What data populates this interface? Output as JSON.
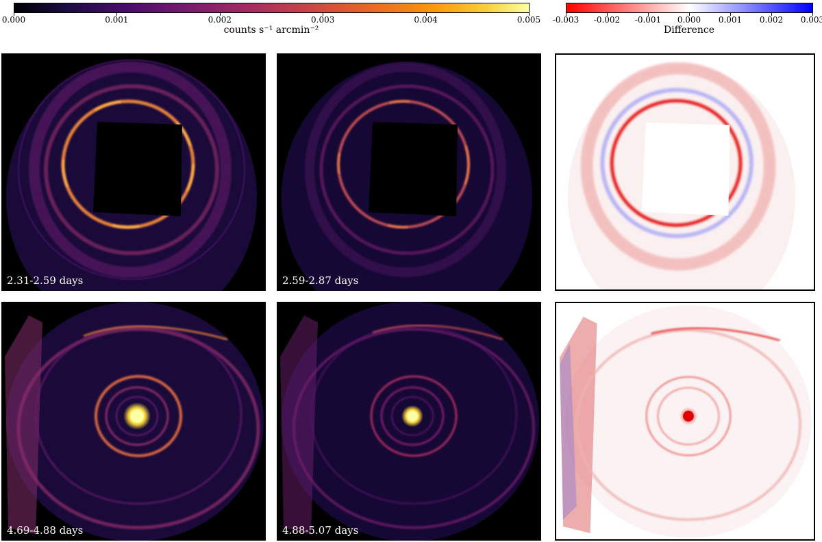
{
  "colorbar_counts": {
    "ticks": [
      "0.000",
      "0.001",
      "0.002",
      "0.003",
      "0.004",
      "0.005"
    ],
    "label": "counts s⁻¹ arcmin⁻²",
    "range": [
      0.0,
      0.005
    ],
    "colormap": "inferno"
  },
  "colorbar_diff": {
    "ticks": [
      "-0.003",
      "-0.002",
      "-0.001",
      "0.000",
      "0.001",
      "0.002",
      "0.003"
    ],
    "label": "Difference",
    "range": [
      -0.003,
      0.003
    ],
    "colormap": "bwr_reversed",
    "neg_color": "#ff0000",
    "pos_color": "#0000ff"
  },
  "panels": [
    {
      "id": "p1",
      "label": "2.31-2.59 days"
    },
    {
      "id": "p2",
      "label": "2.59-2.87 days"
    },
    {
      "id": "p3",
      "label": ""
    },
    {
      "id": "p4",
      "label": "4.69-4.88 days"
    },
    {
      "id": "p5",
      "label": "4.88-5.07 days"
    },
    {
      "id": "p6",
      "label": ""
    }
  ]
}
